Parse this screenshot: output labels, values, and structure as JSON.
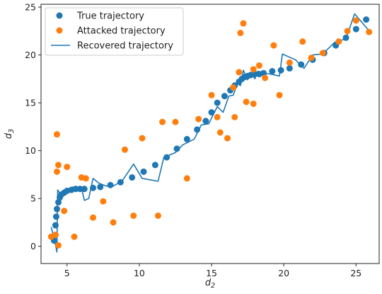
{
  "chart_data": {
    "type": "scatter",
    "xlabel_main": "d",
    "xlabel_sub": "2",
    "ylabel_main": "d",
    "ylabel_sub": "3",
    "xlim": [
      3.2,
      26.6
    ],
    "ylim": [
      -1.8,
      25.3
    ],
    "xticks": [
      5,
      10,
      15,
      20,
      25
    ],
    "yticks": [
      0,
      5,
      10,
      15,
      20,
      25
    ],
    "grid": false,
    "legend_position": "upper-left",
    "colors": {
      "true": "#1f77b4",
      "attacked": "#ff7f0e",
      "recovered": "#1f77b4"
    },
    "series": [
      {
        "name": "True trajectory",
        "kind": "scatter",
        "points": [
          [
            4.1,
            0.6
          ],
          [
            4.2,
            1.2
          ],
          [
            4.2,
            2.2
          ],
          [
            4.25,
            3.1
          ],
          [
            4.3,
            3.9
          ],
          [
            4.4,
            4.6
          ],
          [
            4.5,
            5.1
          ],
          [
            4.6,
            5.4
          ],
          [
            4.8,
            5.6
          ],
          [
            5.0,
            5.8
          ],
          [
            5.3,
            5.9
          ],
          [
            5.6,
            6.0
          ],
          [
            5.9,
            6.0
          ],
          [
            6.2,
            6.0
          ],
          [
            6.8,
            6.1
          ],
          [
            7.3,
            6.2
          ],
          [
            8.0,
            6.4
          ],
          [
            8.7,
            6.7
          ],
          [
            9.5,
            7.2
          ],
          [
            10.3,
            7.8
          ],
          [
            11.1,
            8.5
          ],
          [
            11.9,
            9.3
          ],
          [
            12.6,
            10.2
          ],
          [
            13.3,
            11.2
          ],
          [
            14.0,
            12.2
          ],
          [
            14.6,
            13.1
          ],
          [
            15.0,
            14.0
          ],
          [
            15.4,
            15.0
          ],
          [
            15.9,
            15.7
          ],
          [
            16.3,
            16.3
          ],
          [
            16.6,
            16.8
          ],
          [
            16.9,
            17.2
          ],
          [
            17.1,
            17.5
          ],
          [
            17.3,
            17.7
          ],
          [
            17.5,
            17.8
          ],
          [
            17.7,
            17.9
          ],
          [
            18.0,
            18.0
          ],
          [
            18.3,
            18.0
          ],
          [
            18.6,
            18.1
          ],
          [
            19.2,
            18.3
          ],
          [
            19.8,
            18.4
          ],
          [
            20.4,
            18.6
          ],
          [
            21.2,
            19.0
          ],
          [
            22.0,
            19.5
          ],
          [
            22.8,
            20.2
          ],
          [
            23.6,
            21.0
          ],
          [
            24.3,
            21.8
          ],
          [
            25.0,
            22.7
          ],
          [
            25.7,
            23.7
          ]
        ]
      },
      {
        "name": "Attacked trajectory",
        "kind": "scatter",
        "points": [
          [
            3.9,
            1.0
          ],
          [
            4.2,
            1.2
          ],
          [
            4.4,
            0.1
          ],
          [
            4.3,
            11.7
          ],
          [
            4.3,
            7.8
          ],
          [
            4.4,
            8.5
          ],
          [
            4.8,
            3.7
          ],
          [
            5.0,
            8.3
          ],
          [
            5.5,
            1.0
          ],
          [
            6.0,
            7.2
          ],
          [
            6.3,
            7.1
          ],
          [
            6.8,
            3.0
          ],
          [
            7.5,
            4.7
          ],
          [
            8.2,
            2.5
          ],
          [
            9.0,
            10.1
          ],
          [
            9.6,
            3.2
          ],
          [
            10.2,
            11.3
          ],
          [
            11.3,
            3.2
          ],
          [
            11.6,
            13.0
          ],
          [
            12.5,
            13.0
          ],
          [
            13.3,
            7.1
          ],
          [
            14.1,
            13.3
          ],
          [
            15.0,
            15.8
          ],
          [
            15.4,
            13.5
          ],
          [
            15.6,
            11.9
          ],
          [
            16.1,
            11.3
          ],
          [
            16.5,
            16.6
          ],
          [
            16.6,
            13.5
          ],
          [
            16.9,
            18.2
          ],
          [
            17.0,
            22.3
          ],
          [
            17.2,
            23.3
          ],
          [
            17.4,
            15.1
          ],
          [
            17.9,
            18.5
          ],
          [
            17.9,
            14.9
          ],
          [
            18.3,
            18.9
          ],
          [
            18.7,
            17.6
          ],
          [
            19.3,
            21.0
          ],
          [
            19.7,
            15.8
          ],
          [
            20.4,
            19.2
          ],
          [
            21.3,
            21.4
          ],
          [
            21.9,
            19.7
          ],
          [
            22.7,
            20.2
          ],
          [
            23.8,
            21.4
          ],
          [
            24.4,
            22.5
          ],
          [
            25.0,
            23.6
          ],
          [
            25.9,
            22.4
          ]
        ]
      },
      {
        "name": "Recovered trajectory",
        "kind": "line",
        "points": [
          [
            3.9,
            2.0
          ],
          [
            4.1,
            0.9
          ],
          [
            4.3,
            -0.6
          ],
          [
            4.35,
            5.9
          ],
          [
            4.6,
            5.3
          ],
          [
            5.0,
            5.8
          ],
          [
            5.4,
            6.2
          ],
          [
            5.7,
            5.9
          ],
          [
            6.0,
            6.1
          ],
          [
            6.2,
            4.8
          ],
          [
            6.5,
            5.0
          ],
          [
            6.8,
            7.1
          ],
          [
            7.2,
            6.6
          ],
          [
            7.7,
            6.3
          ],
          [
            8.2,
            6.3
          ],
          [
            8.8,
            6.8
          ],
          [
            9.6,
            8.6
          ],
          [
            10.2,
            7.1
          ],
          [
            11.3,
            6.8
          ],
          [
            11.7,
            9.3
          ],
          [
            12.5,
            9.8
          ],
          [
            13.0,
            10.6
          ],
          [
            13.8,
            11.2
          ],
          [
            14.3,
            12.7
          ],
          [
            14.8,
            12.8
          ],
          [
            15.4,
            14.6
          ],
          [
            15.8,
            14.0
          ],
          [
            16.2,
            15.7
          ],
          [
            16.5,
            15.8
          ],
          [
            16.8,
            17.0
          ],
          [
            17.0,
            16.8
          ],
          [
            17.2,
            18.4
          ],
          [
            17.5,
            17.4
          ],
          [
            17.7,
            18.2
          ],
          [
            18.0,
            17.5
          ],
          [
            18.2,
            18.3
          ],
          [
            18.5,
            18.1
          ],
          [
            19.1,
            18.0
          ],
          [
            19.7,
            17.8
          ],
          [
            19.9,
            20.1
          ],
          [
            20.8,
            19.5
          ],
          [
            21.4,
            18.6
          ],
          [
            22.0,
            20.0
          ],
          [
            22.7,
            20.1
          ],
          [
            23.5,
            21.3
          ],
          [
            24.3,
            21.7
          ],
          [
            24.9,
            24.3
          ],
          [
            25.8,
            22.7
          ],
          [
            26.1,
            22.3
          ]
        ]
      }
    ]
  }
}
